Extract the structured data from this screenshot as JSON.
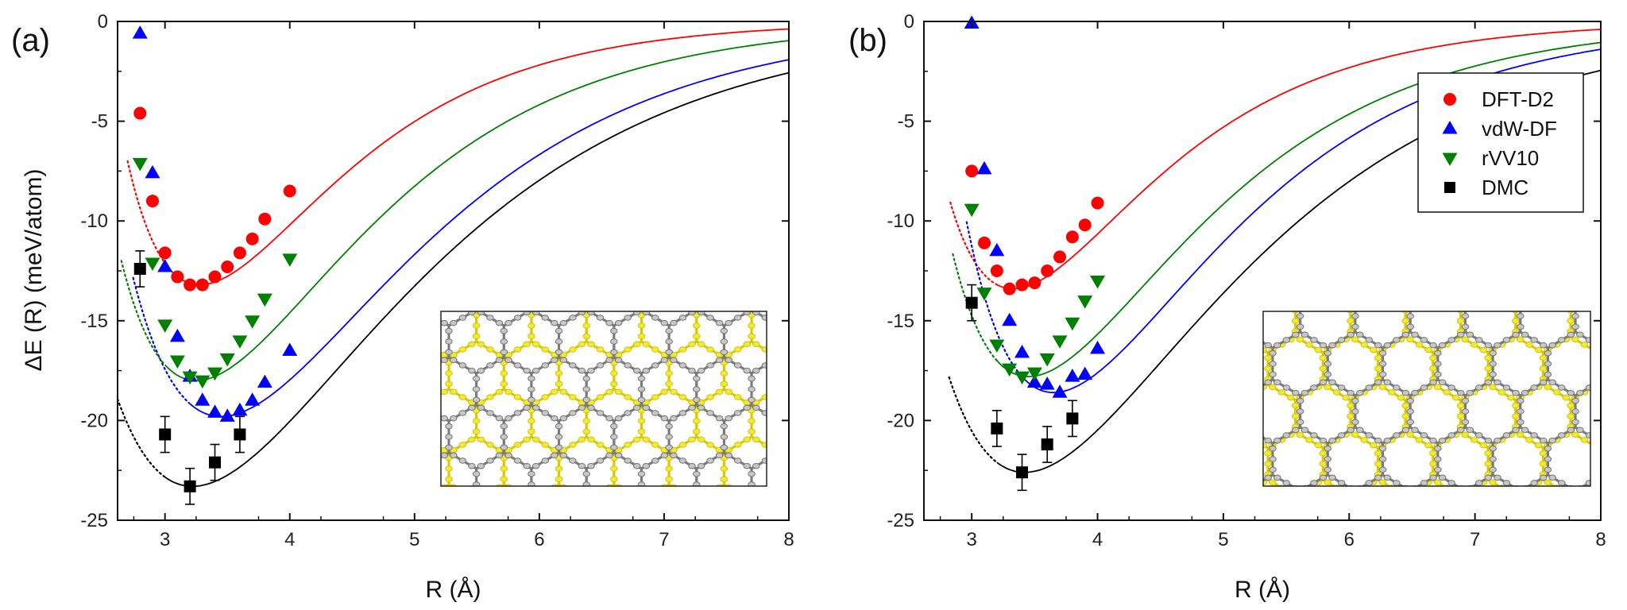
{
  "chart_data": [
    {
      "type": "line",
      "panel_label": "(a)",
      "xlabel": "R (Å)",
      "ylabel": "ΔE (R) (meV/atom)",
      "xlim": [
        2.62,
        8
      ],
      "ylim": [
        -25,
        0
      ],
      "xticks": [
        "3",
        "4",
        "5",
        "6",
        "7",
        "8"
      ],
      "yticks": [
        "0",
        "-5",
        "-10",
        "-15",
        "-20",
        "-25"
      ],
      "grid": false,
      "legend": null,
      "inset": "top view of bilayer lattice (AB stacking)",
      "series": [
        {
          "name": "DFT-D2",
          "color": "#ff0000",
          "marker": "circle",
          "x": [
            2.8,
            2.9,
            3.0,
            3.1,
            3.2,
            3.3,
            3.4,
            3.5,
            3.6,
            3.7,
            3.8,
            4.0
          ],
          "y": [
            -4.6,
            -9.0,
            -11.6,
            -12.8,
            -13.2,
            -13.2,
            -12.8,
            -12.3,
            -11.6,
            -10.9,
            -9.9,
            -8.5
          ],
          "fit": {
            "r0": 3.28,
            "emin": -13.2,
            "a": 0.9,
            "x_start": 2.7,
            "dotted_below": 3.0
          }
        },
        {
          "name": "vdW-DF",
          "color": "#0000ff",
          "marker": "triangle-up",
          "x": [
            2.8,
            2.9,
            3.0,
            3.1,
            3.2,
            3.3,
            3.4,
            3.5,
            3.6,
            3.7,
            3.8,
            4.0
          ],
          "y": [
            -0.6,
            -7.6,
            -12.3,
            -15.8,
            -17.8,
            -19.0,
            -19.6,
            -19.8,
            -19.5,
            -19.0,
            -18.1,
            -16.5
          ],
          "fit": {
            "r0": 3.45,
            "emin": -19.8,
            "a": 0.66,
            "x_start": 2.745,
            "dotted_below": 3.2
          }
        },
        {
          "name": "rVV10",
          "color": "#008000",
          "marker": "triangle-down",
          "x": [
            2.8,
            2.9,
            3.0,
            3.1,
            3.2,
            3.3,
            3.4,
            3.5,
            3.6,
            3.7,
            3.8,
            4.0
          ],
          "y": [
            -7.1,
            -12.1,
            -15.2,
            -17.0,
            -17.8,
            -18.0,
            -17.6,
            -16.9,
            -16.0,
            -15.0,
            -13.9,
            -11.9
          ],
          "fit": {
            "r0": 3.25,
            "emin": -18.0,
            "a": 0.76,
            "x_start": 2.65,
            "dotted_below": 3.0
          }
        },
        {
          "name": "DMC",
          "color": "#000000",
          "marker": "square",
          "x": [
            2.8,
            3.0,
            3.2,
            3.4,
            3.6
          ],
          "y": [
            -12.4,
            -20.7,
            -23.3,
            -22.1,
            -20.7
          ],
          "err": [
            0.9,
            0.9,
            0.9,
            0.9,
            0.9
          ],
          "fit": {
            "r0": 3.22,
            "emin": -23.3,
            "a": 0.6,
            "x_start": 2.62,
            "dotted_below": 3.0
          }
        }
      ]
    },
    {
      "type": "line",
      "panel_label": "(b)",
      "xlabel": "R (Å)",
      "ylabel": "",
      "xlim": [
        2.62,
        8
      ],
      "ylim": [
        -25,
        0
      ],
      "xticks": [
        "3",
        "4",
        "5",
        "6",
        "7",
        "8"
      ],
      "yticks": [
        "0",
        "-5",
        "-10",
        "-15",
        "-20",
        "-25"
      ],
      "grid": false,
      "legend": "top-right",
      "inset": "top view of bilayer lattice (AA stacking)",
      "series": [
        {
          "name": "DFT-D2",
          "color": "#ff0000",
          "marker": "circle",
          "x": [
            3.0,
            3.1,
            3.2,
            3.3,
            3.4,
            3.5,
            3.6,
            3.7,
            3.8,
            3.9,
            4.0
          ],
          "y": [
            -7.5,
            -11.1,
            -12.5,
            -13.4,
            -13.2,
            -13.1,
            -12.5,
            -11.8,
            -10.8,
            -10.2,
            -9.1
          ],
          "fit": {
            "r0": 3.33,
            "emin": -13.4,
            "a": 0.9,
            "x_start": 2.83,
            "dotted_below": 3.2
          }
        },
        {
          "name": "vdW-DF",
          "color": "#0000ff",
          "marker": "triangle-up",
          "x": [
            3.0,
            3.1,
            3.2,
            3.3,
            3.4,
            3.5,
            3.6,
            3.7,
            3.8,
            3.9,
            4.0
          ],
          "y": [
            -0.1,
            -7.4,
            -11.5,
            -15.0,
            -16.6,
            -18.1,
            -18.2,
            -18.6,
            -17.8,
            -17.7,
            -16.4
          ],
          "fit": {
            "r0": 3.65,
            "emin": -18.6,
            "a": 0.75,
            "x_start": 2.96,
            "dotted_below": 3.4
          }
        },
        {
          "name": "rVV10",
          "color": "#008000",
          "marker": "triangle-down",
          "x": [
            3.0,
            3.1,
            3.2,
            3.3,
            3.4,
            3.5,
            3.6,
            3.7,
            3.8,
            3.9,
            4.0
          ],
          "y": [
            -9.4,
            -13.6,
            -16.2,
            -17.4,
            -17.8,
            -17.6,
            -16.9,
            -16.0,
            -15.1,
            -14.0,
            -13.0
          ],
          "fit": {
            "r0": 3.45,
            "emin": -17.8,
            "a": 0.77,
            "x_start": 2.85,
            "dotted_below": 3.2
          }
        },
        {
          "name": "DMC",
          "color": "#000000",
          "marker": "square",
          "x": [
            3.0,
            3.2,
            3.4,
            3.6,
            3.8
          ],
          "y": [
            -14.1,
            -20.4,
            -22.6,
            -21.2,
            -19.9
          ],
          "err": [
            0.9,
            0.9,
            0.9,
            0.9,
            0.9
          ],
          "fit": {
            "r0": 3.42,
            "emin": -22.6,
            "a": 0.63,
            "x_start": 2.82,
            "dotted_below": 3.2
          }
        }
      ]
    }
  ]
}
